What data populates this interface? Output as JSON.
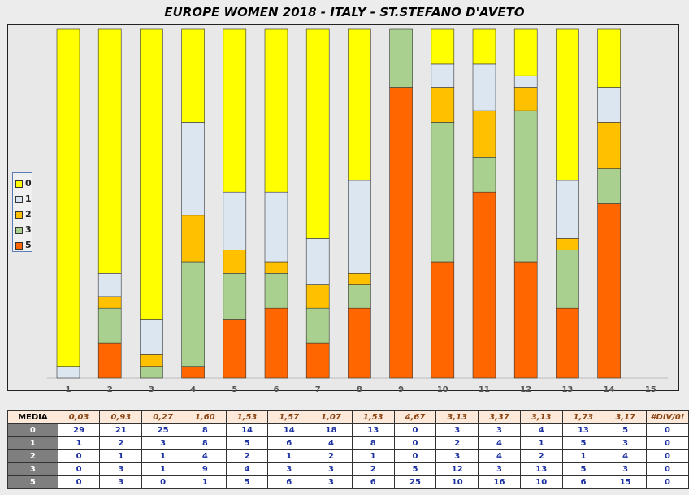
{
  "chart_data": {
    "type": "bar",
    "stacked": true,
    "title": "EUROPE WOMEN 2018 - ITALY - ST.STEFANO D'AVETO",
    "categories": [
      "1",
      "2",
      "3",
      "4",
      "5",
      "6",
      "7",
      "8",
      "9",
      "10",
      "11",
      "12",
      "13",
      "14",
      "15"
    ],
    "series": [
      {
        "name": "5",
        "color": "#ff6600",
        "values": [
          0,
          3,
          0,
          1,
          5,
          6,
          3,
          6,
          25,
          10,
          16,
          10,
          6,
          15,
          0
        ]
      },
      {
        "name": "3",
        "color": "#a9d08e",
        "values": [
          0,
          3,
          1,
          9,
          4,
          3,
          3,
          2,
          5,
          12,
          3,
          13,
          5,
          3,
          0
        ]
      },
      {
        "name": "2",
        "color": "#ffc000",
        "values": [
          0,
          1,
          1,
          4,
          2,
          1,
          2,
          1,
          0,
          3,
          4,
          2,
          1,
          4,
          0
        ]
      },
      {
        "name": "1",
        "color": "#dce6f1",
        "values": [
          1,
          2,
          3,
          8,
          5,
          6,
          4,
          8,
          0,
          2,
          4,
          1,
          5,
          3,
          0
        ]
      },
      {
        "name": "0",
        "color": "#ffff00",
        "values": [
          29,
          21,
          25,
          8,
          14,
          14,
          18,
          13,
          0,
          3,
          3,
          4,
          13,
          5,
          0
        ]
      }
    ],
    "ylim": [
      0,
      30
    ],
    "legend": "left",
    "legend_order": [
      "0",
      "1",
      "2",
      "3",
      "5"
    ],
    "grid": false
  },
  "table": {
    "media_label": "MEDIA",
    "media": [
      "0,03",
      "0,93",
      "0,27",
      "1,60",
      "1,53",
      "1,57",
      "1,07",
      "1,53",
      "4,67",
      "3,13",
      "3,37",
      "3,13",
      "1,73",
      "3,17",
      "#DIV/0!"
    ],
    "rows": [
      {
        "label": "0",
        "values": [
          "29",
          "21",
          "25",
          "8",
          "14",
          "14",
          "18",
          "13",
          "0",
          "3",
          "3",
          "4",
          "13",
          "5",
          "0"
        ]
      },
      {
        "label": "1",
        "values": [
          "1",
          "2",
          "3",
          "8",
          "5",
          "6",
          "4",
          "8",
          "0",
          "2",
          "4",
          "1",
          "5",
          "3",
          "0"
        ]
      },
      {
        "label": "2",
        "values": [
          "0",
          "1",
          "1",
          "4",
          "2",
          "1",
          "2",
          "1",
          "0",
          "3",
          "4",
          "2",
          "1",
          "4",
          "0"
        ]
      },
      {
        "label": "3",
        "values": [
          "0",
          "3",
          "1",
          "9",
          "4",
          "3",
          "3",
          "2",
          "5",
          "12",
          "3",
          "13",
          "5",
          "3",
          "0"
        ]
      },
      {
        "label": "5",
        "values": [
          "0",
          "3",
          "0",
          "1",
          "5",
          "6",
          "3",
          "6",
          "25",
          "10",
          "16",
          "10",
          "6",
          "15",
          "0"
        ]
      }
    ]
  }
}
